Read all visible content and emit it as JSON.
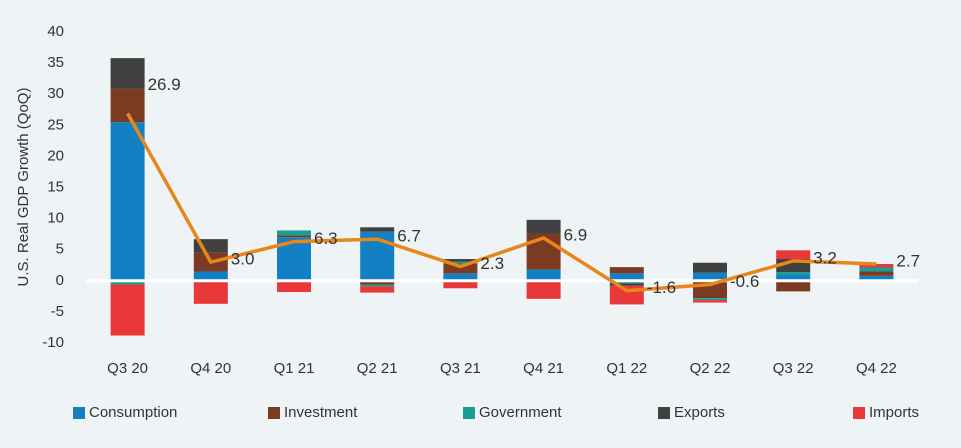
{
  "chart_data": {
    "type": "bar",
    "y_label": "U.S. Real GDP Growth (QoQ)",
    "categories": [
      "Q3 20",
      "Q4 20",
      "Q1 21",
      "Q2 21",
      "Q3 21",
      "Q4 21",
      "Q1 22",
      "Q2 22",
      "Q3 22",
      "Q4 22"
    ],
    "series": [
      {
        "name": "Consumption",
        "color": "#1380c3",
        "values": [
          25.5,
          1.5,
          7.0,
          7.9,
          1.2,
          1.8,
          1.2,
          1.3,
          1.0,
          0.8
        ]
      },
      {
        "name": "Investment",
        "color": "#7b3b22",
        "values": [
          5.4,
          3.0,
          0.3,
          -0.6,
          1.6,
          5.8,
          1.0,
          -2.8,
          -1.7,
          0.7
        ]
      },
      {
        "name": "Government",
        "color": "#1a9e94",
        "values": [
          -0.6,
          -0.1,
          0.8,
          -0.3,
          0.3,
          -0.2,
          -0.4,
          -0.3,
          0.4,
          0.6
        ]
      },
      {
        "name": "Exports",
        "color": "#404040",
        "values": [
          4.9,
          2.2,
          0.0,
          0.7,
          0.4,
          2.2,
          -0.4,
          1.6,
          2.1,
          0.1
        ]
      },
      {
        "name": "Imports",
        "color": "#e8383a",
        "values": [
          -8.2,
          -3.6,
          -1.8,
          -1.0,
          -1.2,
          -2.7,
          -3.0,
          -0.4,
          1.4,
          0.5
        ]
      }
    ],
    "line": {
      "color": "#e8861a",
      "values": [
        26.9,
        3.0,
        6.3,
        6.7,
        2.3,
        6.9,
        -1.6,
        -0.6,
        3.2,
        2.7
      ],
      "value_labels": [
        "26.9",
        "3.0",
        "6.3",
        "6.7",
        "2.3",
        "6.9",
        "-1.6",
        "-0.6",
        "3.2",
        "2.7"
      ]
    },
    "ylim": [
      -10,
      40
    ],
    "yticks": [
      -10,
      -5,
      0,
      5,
      10,
      15,
      20,
      25,
      30,
      35,
      40
    ]
  }
}
